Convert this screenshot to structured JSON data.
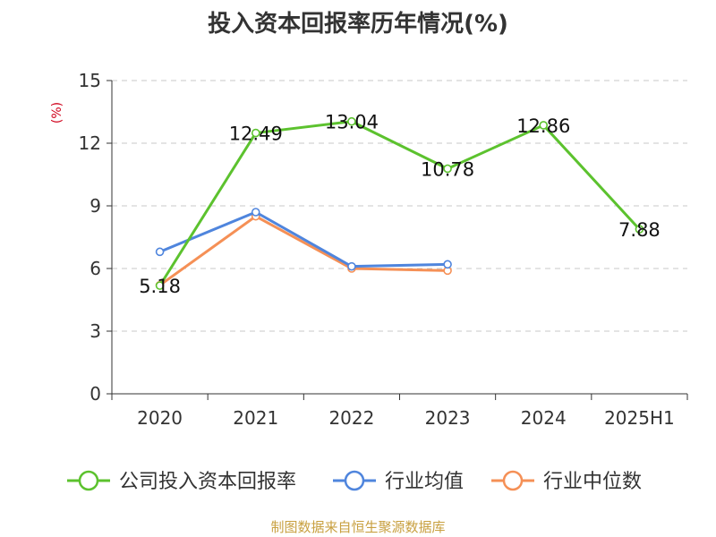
{
  "chart_data": {
    "type": "line",
    "title": "投入资本回报率历年情况(%)",
    "ylabel": "(%)",
    "categories": [
      "2020",
      "2021",
      "2022",
      "2023",
      "2024",
      "2025H1"
    ],
    "ylim": [
      0,
      15
    ],
    "yticks": [
      0,
      3,
      6,
      9,
      12,
      15
    ],
    "grid": true,
    "legend_position": "bottom",
    "series": [
      {
        "name": "公司投入资本回报率",
        "color": "#5cc22e",
        "values": [
          5.18,
          12.49,
          13.04,
          10.78,
          12.86,
          7.88
        ],
        "labels": [
          "5.18",
          "12.49",
          "13.04",
          "10.78",
          "12.86",
          "7.88"
        ]
      },
      {
        "name": "行业均值",
        "color": "#4f85dd",
        "values": [
          6.8,
          8.7,
          6.1,
          6.2,
          null,
          null
        ]
      },
      {
        "name": "行业中位数",
        "color": "#f59056",
        "values": [
          5.2,
          8.5,
          6.0,
          5.9,
          null,
          null
        ]
      }
    ]
  },
  "footer": "制图数据来自恒生聚源数据库"
}
